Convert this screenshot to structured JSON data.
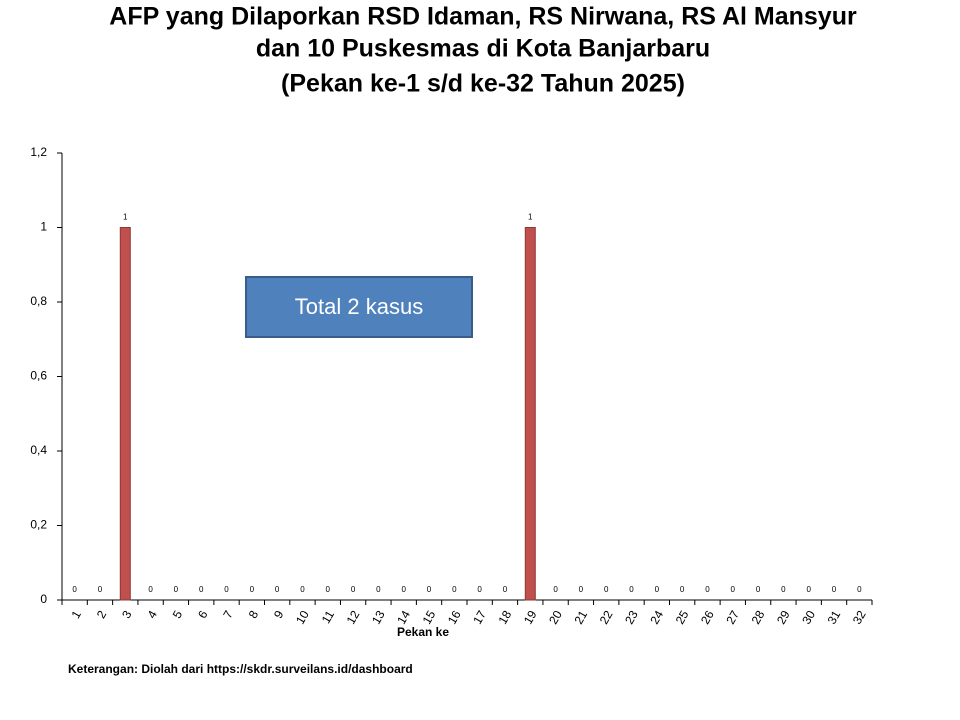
{
  "chart_data": {
    "type": "bar",
    "title": [
      "AFP yang Dilaporkan RSD Idaman, RS Nirwana, RS Al Mansyur",
      "dan 10 Puskesmas di Kota Banjarbaru",
      "(Pekan ke-1 s/d ke-32 Tahun 2025)"
    ],
    "x_label": "Pekan ke",
    "categories": [
      "1",
      "2",
      "3",
      "4",
      "5",
      "6",
      "7",
      "8",
      "9",
      "10",
      "11",
      "12",
      "13",
      "14",
      "15",
      "16",
      "17",
      "18",
      "19",
      "20",
      "21",
      "22",
      "23",
      "24",
      "25",
      "26",
      "27",
      "28",
      "29",
      "30",
      "31",
      "32"
    ],
    "values": [
      0,
      0,
      1,
      0,
      0,
      0,
      0,
      0,
      0,
      0,
      0,
      0,
      0,
      0,
      0,
      0,
      0,
      0,
      1,
      0,
      0,
      0,
      0,
      0,
      0,
      0,
      0,
      0,
      0,
      0,
      0,
      0
    ],
    "color": "#c0504d",
    "ylim": [
      0,
      1.2
    ],
    "yticks": [
      0,
      {
        "value": 0.2,
        "label": "0,2"
      },
      {
        "value": 0.4,
        "label": "0,4"
      },
      {
        "value": 0.6,
        "label": "0,6"
      },
      {
        "value": 0.8,
        "label": "0,8"
      },
      1,
      {
        "value": 1.2,
        "label": "1,2"
      }
    ],
    "annotation": "Total 2 kasus",
    "footnote": "Keterangan: Diolah dari https://skdr.surveilans.id/dashboard"
  }
}
